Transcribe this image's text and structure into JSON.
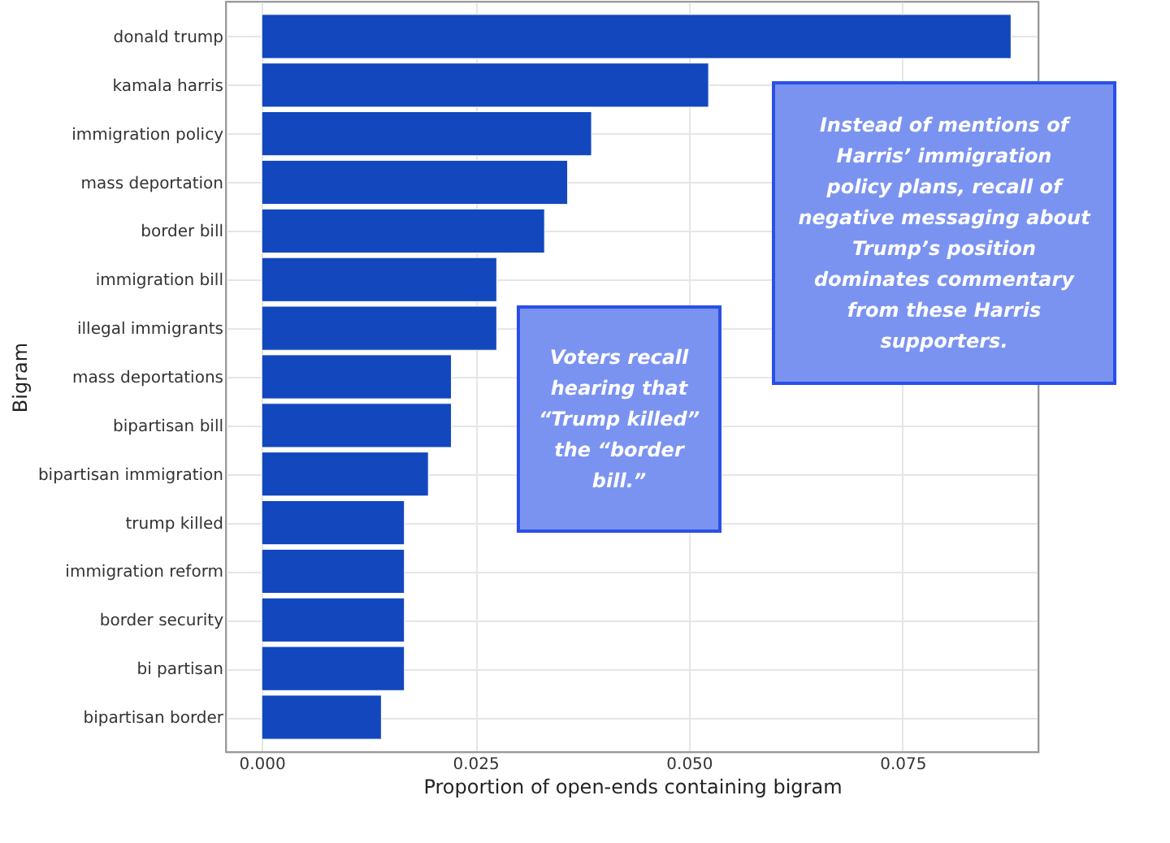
{
  "chart_data": {
    "type": "bar",
    "orientation": "horizontal",
    "xlabel": "Proportion of open-ends containing bigram",
    "ylabel": "Bigram",
    "categories": [
      "donald trump",
      "kamala harris",
      "immigration policy",
      "mass deportation",
      "border bill",
      "immigration bill",
      "illegal immigrants",
      "mass deportations",
      "bipartisan bill",
      "bipartisan immigration",
      "trump killed",
      "immigration reform",
      "border security",
      "bi partisan",
      "bipartisan border"
    ],
    "values": [
      0.0877,
      0.0523,
      0.0386,
      0.0358,
      0.0331,
      0.0275,
      0.0275,
      0.0222,
      0.0222,
      0.0195,
      0.0167,
      0.0167,
      0.0167,
      0.0167,
      0.014
    ],
    "color": "#1247be",
    "xlim": [
      -0.0042,
      0.0909
    ],
    "xticks": [
      {
        "value": 0,
        "label": "0.000"
      },
      {
        "value": 0.025,
        "label": "0.025"
      },
      {
        "value": 0.05,
        "label": "0.050"
      },
      {
        "value": 0.075,
        "label": "0.075"
      }
    ],
    "grid": true,
    "annotations": [
      "Instead of mentions of Harris’ immigration policy plans, recall of negative messaging about Trump’s position dominates commentary from these Harris supporters.",
      "Voters recall hearing that “Trump killed” the “border bill.”"
    ]
  }
}
